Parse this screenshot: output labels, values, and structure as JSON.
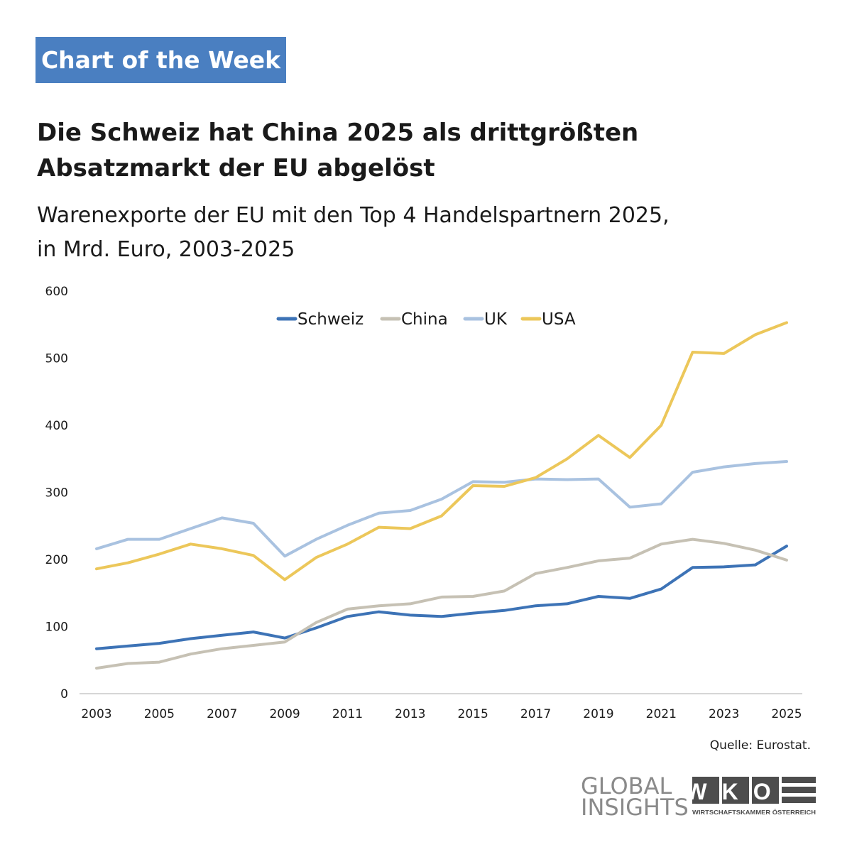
{
  "badge": "Chart of the Week",
  "title_lines": [
    "Die Schweiz hat China 2025 als drittgrößten",
    "Absatzmarkt der EU abgelöst"
  ],
  "subtitle_lines": [
    "Warenexporte der EU mit den Top 4 Handelspartnern 2025,",
    "in Mrd. Euro, 2003-2025"
  ],
  "source": "Quelle: Eurostat.",
  "logo": {
    "global_insights": [
      "GLOBAL",
      "INSIGHTS"
    ],
    "wko_text": "WKO",
    "wko_caption": "WIRTSCHAFTSKAMMER ÖSTERREICH"
  },
  "colors": {
    "badge": "#4a7fc1",
    "logo_grey": "#8a8a8a",
    "logo_dark": "#4d4d4d"
  },
  "chart_data": {
    "type": "line",
    "title": "Die Schweiz hat China 2025 als drittgrößten Absatzmarkt der EU abgelöst",
    "subtitle": "Warenexporte der EU mit den Top 4 Handelspartnern 2025, in Mrd. Euro, 2003-2025",
    "xlabel": "",
    "ylabel": "",
    "ylim": [
      0,
      600
    ],
    "yticks": [
      0,
      100,
      200,
      300,
      400,
      500,
      600
    ],
    "x": [
      2003,
      2004,
      2005,
      2006,
      2007,
      2008,
      2009,
      2010,
      2011,
      2012,
      2013,
      2014,
      2015,
      2016,
      2017,
      2018,
      2019,
      2020,
      2021,
      2022,
      2023,
      2024,
      2025
    ],
    "xtick_labels": [
      "2003",
      "2005",
      "2007",
      "2009",
      "2011",
      "2013",
      "2015",
      "2017",
      "2019",
      "2021",
      "2023",
      "2025"
    ],
    "legend_position": "top-center",
    "grid": false,
    "series": [
      {
        "name": "Schweiz",
        "color": "#3d73b6",
        "values": [
          67,
          71,
          75,
          82,
          87,
          92,
          83,
          98,
          115,
          122,
          117,
          115,
          120,
          124,
          131,
          134,
          145,
          142,
          156,
          188,
          189,
          192,
          220
        ]
      },
      {
        "name": "China",
        "color": "#c6c1b4",
        "values": [
          38,
          45,
          47,
          59,
          67,
          72,
          77,
          106,
          126,
          131,
          134,
          144,
          145,
          153,
          179,
          188,
          198,
          202,
          223,
          230,
          224,
          214,
          199
        ]
      },
      {
        "name": "UK",
        "color": "#a9c2e0",
        "values": [
          216,
          230,
          230,
          246,
          262,
          254,
          205,
          230,
          251,
          269,
          273,
          290,
          316,
          315,
          320,
          319,
          320,
          278,
          283,
          330,
          338,
          343,
          346
        ]
      },
      {
        "name": "USA",
        "color": "#ecc75a",
        "values": [
          186,
          195,
          208,
          223,
          216,
          206,
          170,
          203,
          223,
          248,
          246,
          265,
          310,
          309,
          322,
          350,
          385,
          352,
          400,
          509,
          507,
          535,
          553
        ]
      }
    ]
  }
}
